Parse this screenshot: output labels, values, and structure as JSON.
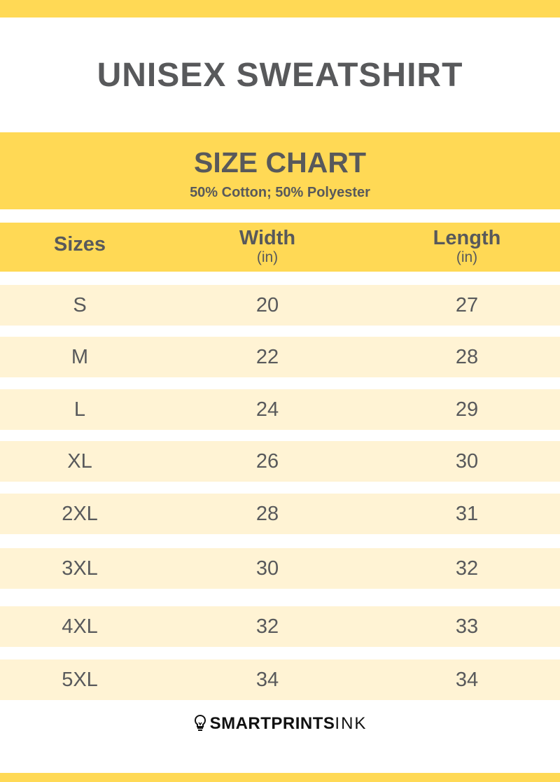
{
  "title": "UNISEX SWEATSHIRT",
  "chart_header": {
    "title": "SIZE CHART",
    "material": "50% Cotton; 50% Polyester"
  },
  "columns": [
    {
      "label": "Sizes",
      "unit": ""
    },
    {
      "label": "Width",
      "unit": "(in)"
    },
    {
      "label": "Length",
      "unit": "(in)"
    }
  ],
  "rows": [
    {
      "size": "S",
      "width": "20",
      "length": "27"
    },
    {
      "size": "M",
      "width": "22",
      "length": "28"
    },
    {
      "size": "L",
      "width": "24",
      "length": "29"
    },
    {
      "size": "XL",
      "width": "26",
      "length": "30"
    },
    {
      "size": "2XL",
      "width": "28",
      "length": "31"
    },
    {
      "size": "3XL",
      "width": "30",
      "length": "32"
    },
    {
      "size": "4XL",
      "width": "32",
      "length": "33"
    },
    {
      "size": "5XL",
      "width": "34",
      "length": "34"
    }
  ],
  "logo": {
    "bold": "SMARTPRINTS",
    "light": "INK",
    "icon": "lightbulb-icon"
  },
  "colors": {
    "accent": "#ffd955",
    "row": "#fff3d4",
    "text": "#58595b"
  }
}
